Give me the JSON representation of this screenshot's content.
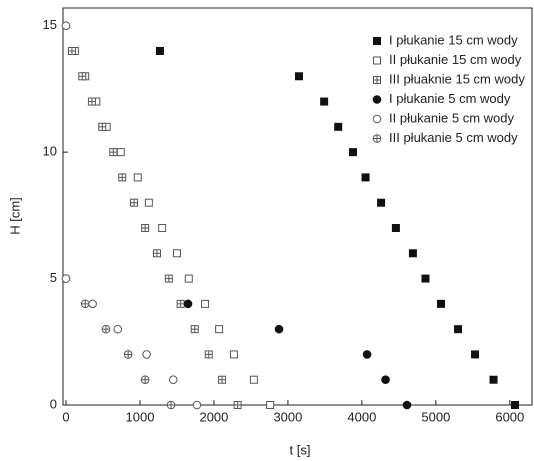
{
  "chart_data": {
    "type": "scatter",
    "x_label": "t [s]",
    "y_label": "H [cm]",
    "xlim": [
      0,
      6300
    ],
    "ylim": [
      0,
      15.7
    ],
    "xticks": [
      0,
      1000,
      2000,
      3000,
      4000,
      5000,
      6000
    ],
    "yticks": [
      0,
      5,
      10,
      15
    ],
    "legend_position": "top-right",
    "series": [
      {
        "name": "I płukanie 15 cm wody",
        "color": "#111111",
        "marker": "square-filled",
        "x": [
          1270,
          3150,
          3490,
          3680,
          3880,
          4050,
          4260,
          4460,
          4690,
          4860,
          5070,
          5300,
          5530,
          5780,
          6070
        ],
        "values": [
          14,
          13,
          12,
          11,
          10,
          9,
          8,
          7,
          6,
          5,
          4,
          3,
          2,
          1,
          0
        ]
      },
      {
        "name": "II płukanie 15 cm wody",
        "color": "#555555",
        "marker": "square-open",
        "x": [
          120,
          260,
          410,
          550,
          740,
          970,
          1120,
          1300,
          1500,
          1660,
          1880,
          2070,
          2270,
          2540,
          2760
        ],
        "values": [
          14,
          13,
          12,
          11,
          10,
          9,
          8,
          7,
          6,
          5,
          4,
          3,
          2,
          1,
          0
        ]
      },
      {
        "name": "III płuaknie 15 cm wody",
        "color": "#555555",
        "marker": "square-plus",
        "x": [
          80,
          220,
          350,
          490,
          640,
          760,
          920,
          1070,
          1230,
          1390,
          1550,
          1740,
          1930,
          2110,
          2320
        ],
        "values": [
          14,
          13,
          12,
          11,
          10,
          9,
          8,
          7,
          6,
          5,
          4,
          3,
          2,
          1,
          0
        ]
      },
      {
        "name": "I płukanie 5 cm wody",
        "color": "#111111",
        "marker": "circle-filled",
        "x": [
          1650,
          2880,
          4070,
          4320,
          4610
        ],
        "values": [
          4,
          3,
          2,
          1,
          0
        ]
      },
      {
        "name": "II płukanie 5 cm wody",
        "color": "#555555",
        "marker": "circle-open",
        "x": [
          0,
          0,
          360,
          700,
          1090,
          1450,
          1770
        ],
        "values": [
          15,
          5,
          4,
          3,
          2,
          1,
          0
        ]
      },
      {
        "name": "III płukanie 5 cm wody",
        "color": "#555555",
        "marker": "circle-plus",
        "x": [
          260,
          540,
          840,
          1070,
          1420
        ],
        "values": [
          4,
          3,
          2,
          1,
          0
        ]
      }
    ]
  }
}
